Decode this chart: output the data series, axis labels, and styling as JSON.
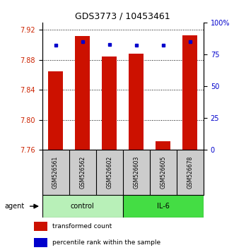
{
  "title": "GDS3773 / 10453461",
  "samples": [
    "GSM526561",
    "GSM526562",
    "GSM526602",
    "GSM526603",
    "GSM526605",
    "GSM526678"
  ],
  "red_values": [
    7.865,
    7.912,
    7.885,
    7.888,
    7.772,
    7.913
  ],
  "blue_values": [
    82,
    85,
    83,
    82,
    82,
    85
  ],
  "y_min": 7.76,
  "y_max": 7.93,
  "y_ticks": [
    7.76,
    7.8,
    7.84,
    7.88,
    7.92
  ],
  "y_right_ticks": [
    0,
    25,
    50,
    75,
    100
  ],
  "groups": [
    {
      "label": "control",
      "indices": [
        0,
        1,
        2
      ],
      "color": "#b8f0b8"
    },
    {
      "label": "IL-6",
      "indices": [
        3,
        4,
        5
      ],
      "color": "#44dd44"
    }
  ],
  "bar_color": "#cc1100",
  "dot_color": "#0000cc",
  "bg_color": "#ffffff",
  "tick_color_left": "#cc2200",
  "tick_color_right": "#0000cc",
  "bar_width": 0.55,
  "label_area_color": "#cccccc",
  "legend_items": [
    {
      "label": "transformed count",
      "color": "#cc1100"
    },
    {
      "label": "percentile rank within the sample",
      "color": "#0000cc"
    }
  ]
}
